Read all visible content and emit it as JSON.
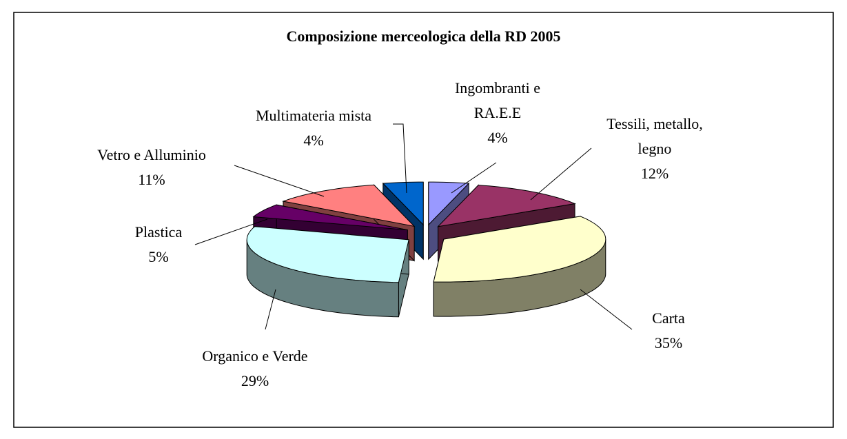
{
  "chart_data": {
    "type": "pie3d",
    "title": "Composizione merceologica della RD 2005",
    "categories": [
      "Ingombranti e RA.E.E",
      "Tessili, metallo, legno",
      "Carta",
      "Organico e Verde",
      "Plastica",
      "Vetro e Alluminio",
      "Multimateria mista"
    ],
    "values": [
      4,
      12,
      35,
      29,
      5,
      11,
      4
    ],
    "value_labels": [
      "4%",
      "12%",
      "35%",
      "29%",
      "5%",
      "11%",
      "4%"
    ],
    "colors": [
      "#9999ff",
      "#993366",
      "#ffffcc",
      "#ccffff",
      "#660066",
      "#ff8080",
      "#0066cc"
    ]
  }
}
